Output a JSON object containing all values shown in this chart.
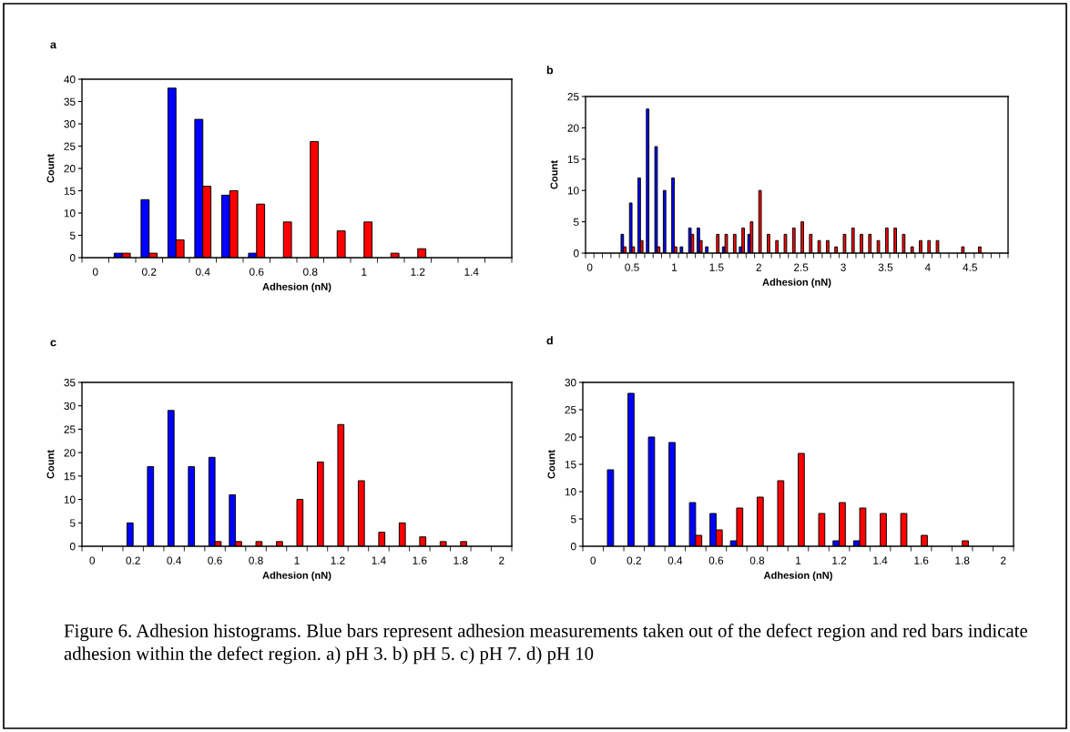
{
  "chart_data": [
    {
      "type": "bar",
      "title": "a",
      "xlabel": "Adhesion (nN)",
      "ylabel": "Count",
      "categories": [
        "0",
        null,
        "0.2",
        null,
        "0.4",
        null,
        "0.6",
        null,
        "0.8",
        null,
        "1",
        null,
        "1.2",
        null,
        "1.4",
        null
      ],
      "series": [
        {
          "color": "#0000ff",
          "values": [
            0,
            1,
            13,
            38,
            31,
            14,
            1,
            0,
            0,
            0,
            0,
            0,
            0,
            0,
            0,
            0
          ]
        },
        {
          "color": "#ff0000",
          "values": [
            0,
            1,
            1,
            4,
            16,
            15,
            12,
            8,
            26,
            6,
            8,
            1,
            2,
            0,
            0,
            0
          ]
        }
      ],
      "ylim": [
        0,
        40
      ],
      "yticks": [
        0,
        5,
        10,
        15,
        20,
        25,
        30,
        35,
        40
      ]
    },
    {
      "type": "bar",
      "title": "b",
      "xlabel": "Adhesion (nN)",
      "ylabel": "Count",
      "categories": [
        "0",
        null,
        null,
        null,
        null,
        "0.5",
        null,
        null,
        null,
        null,
        "1",
        null,
        null,
        null,
        null,
        "1.5",
        null,
        null,
        null,
        null,
        "2",
        null,
        null,
        null,
        null,
        "2.5",
        null,
        null,
        null,
        null,
        "3",
        null,
        null,
        null,
        null,
        "3.5",
        null,
        null,
        null,
        null,
        "4",
        null,
        null,
        null,
        null,
        "4.5",
        null,
        null,
        null,
        null
      ],
      "series": [
        {
          "color": "#0000ff",
          "values": [
            0,
            0,
            0,
            0,
            3,
            8,
            12,
            23,
            17,
            10,
            12,
            1,
            4,
            4,
            1,
            0,
            1,
            0,
            1,
            3,
            0,
            0,
            0,
            0,
            0,
            0,
            0,
            0,
            0,
            0,
            0,
            0,
            0,
            0,
            0,
            0,
            0,
            0,
            0,
            0,
            0,
            0,
            0,
            0,
            0,
            0,
            0,
            0,
            0,
            0
          ]
        },
        {
          "color": "#ff0000",
          "values": [
            0,
            0,
            0,
            0,
            1,
            1,
            2,
            0,
            1,
            0,
            1,
            0,
            3,
            2,
            0,
            3,
            3,
            3,
            4,
            5,
            10,
            3,
            2,
            3,
            4,
            5,
            3,
            2,
            2,
            1,
            3,
            4,
            3,
            3,
            2,
            4,
            4,
            3,
            1,
            2,
            2,
            2,
            0,
            0,
            1,
            0,
            1,
            0,
            0,
            0
          ]
        }
      ],
      "ylim": [
        0,
        25
      ],
      "yticks": [
        0,
        5,
        10,
        15,
        20,
        25
      ]
    },
    {
      "type": "bar",
      "title": "c",
      "xlabel": "Adhesion (nN)",
      "ylabel": "Count",
      "categories": [
        "0",
        null,
        "0.2",
        null,
        "0.4",
        null,
        "0.6",
        null,
        "0.8",
        null,
        "1",
        null,
        "1.2",
        null,
        "1.4",
        null,
        "1.6",
        null,
        "1.8",
        null,
        "2"
      ],
      "series": [
        {
          "color": "#0000ff",
          "values": [
            0,
            0,
            5,
            17,
            29,
            17,
            19,
            11,
            0,
            0,
            0,
            0,
            0,
            0,
            0,
            0,
            0,
            0,
            0,
            0,
            0
          ]
        },
        {
          "color": "#ff0000",
          "values": [
            0,
            0,
            0,
            0,
            0,
            0,
            1,
            1,
            1,
            1,
            10,
            18,
            26,
            14,
            3,
            5,
            2,
            1,
            1,
            0,
            0
          ]
        }
      ],
      "ylim": [
        0,
        35
      ],
      "yticks": [
        0,
        5,
        10,
        15,
        20,
        25,
        30,
        35
      ]
    },
    {
      "type": "bar",
      "title": "d",
      "xlabel": "Adhesion (nN)",
      "ylabel": "Count",
      "categories": [
        "0",
        null,
        "0.2",
        null,
        "0.4",
        null,
        "0.6",
        null,
        "0.8",
        null,
        "1",
        null,
        "1.2",
        null,
        "1.4",
        null,
        "1.6",
        null,
        "1.8",
        null,
        "2"
      ],
      "series": [
        {
          "color": "#0000ff",
          "values": [
            0,
            14,
            28,
            20,
            19,
            8,
            6,
            1,
            0,
            0,
            0,
            0,
            1,
            1,
            0,
            0,
            0,
            0,
            0,
            0,
            0
          ]
        },
        {
          "color": "#ff0000",
          "values": [
            0,
            0,
            0,
            0,
            0,
            2,
            3,
            7,
            9,
            12,
            17,
            6,
            8,
            7,
            6,
            6,
            2,
            0,
            1,
            0,
            0
          ]
        }
      ],
      "ylim": [
        0,
        30
      ],
      "yticks": [
        0,
        5,
        10,
        15,
        20,
        25,
        30
      ],
      "annotations": [
        "Figure 6. Adhesion histograms. Blue bars represent adhesion measurements taken out of the defect region and red bars indicate adhesion within the defect region. a) pH 3. b) pH 5. c) pH 7. d) pH 10"
      ]
    }
  ]
}
